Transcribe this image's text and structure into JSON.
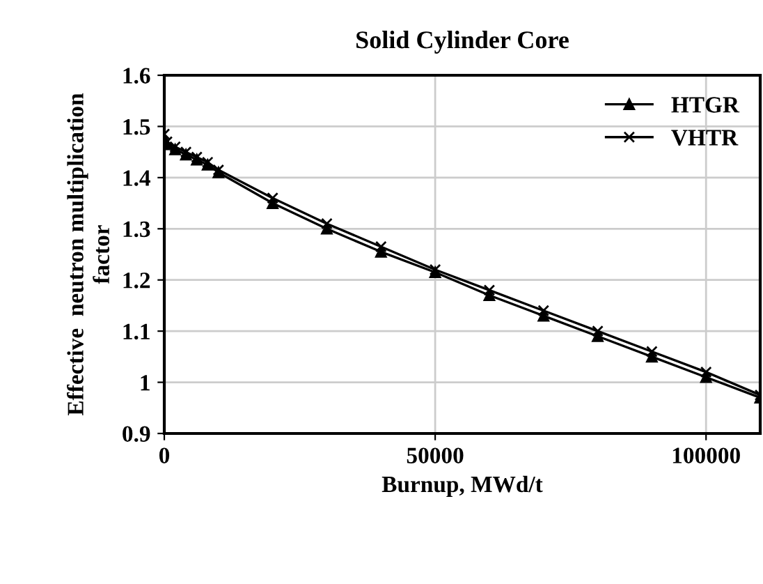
{
  "chart_data": {
    "type": "line",
    "title": "Solid Cylinder Core",
    "xlabel": "Burnup, MWd/t",
    "ylabel": "Effective  neutron multiplication\nfactor",
    "series": [
      {
        "name": "HTGR",
        "color": "#000000",
        "marker": "triangle",
        "x": [
          0,
          500,
          2000,
          4000,
          6000,
          8000,
          10000,
          20000,
          30000,
          40000,
          50000,
          60000,
          70000,
          80000,
          90000,
          100000,
          110000
        ],
        "values": [
          1.475,
          1.465,
          1.455,
          1.445,
          1.435,
          1.425,
          1.41,
          1.35,
          1.3,
          1.255,
          1.215,
          1.17,
          1.13,
          1.09,
          1.05,
          1.01,
          0.97
        ]
      },
      {
        "name": "VHTR",
        "color": "#000000",
        "marker": "cross",
        "x": [
          0,
          500,
          2000,
          4000,
          6000,
          8000,
          10000,
          20000,
          30000,
          40000,
          50000,
          60000,
          70000,
          80000,
          90000,
          100000,
          110000
        ],
        "values": [
          1.485,
          1.47,
          1.46,
          1.45,
          1.44,
          1.43,
          1.415,
          1.36,
          1.31,
          1.265,
          1.22,
          1.18,
          1.14,
          1.1,
          1.06,
          1.02,
          0.975
        ]
      }
    ],
    "xlim": [
      0,
      110000
    ],
    "xticks": [
      0,
      50000,
      100000
    ],
    "ylim": [
      0.9,
      1.6
    ],
    "yticks": [
      0.9,
      1,
      1.1,
      1.2,
      1.3,
      1.4,
      1.5,
      1.6
    ],
    "grid": true,
    "legend": "top right",
    "line_style": "solid"
  }
}
